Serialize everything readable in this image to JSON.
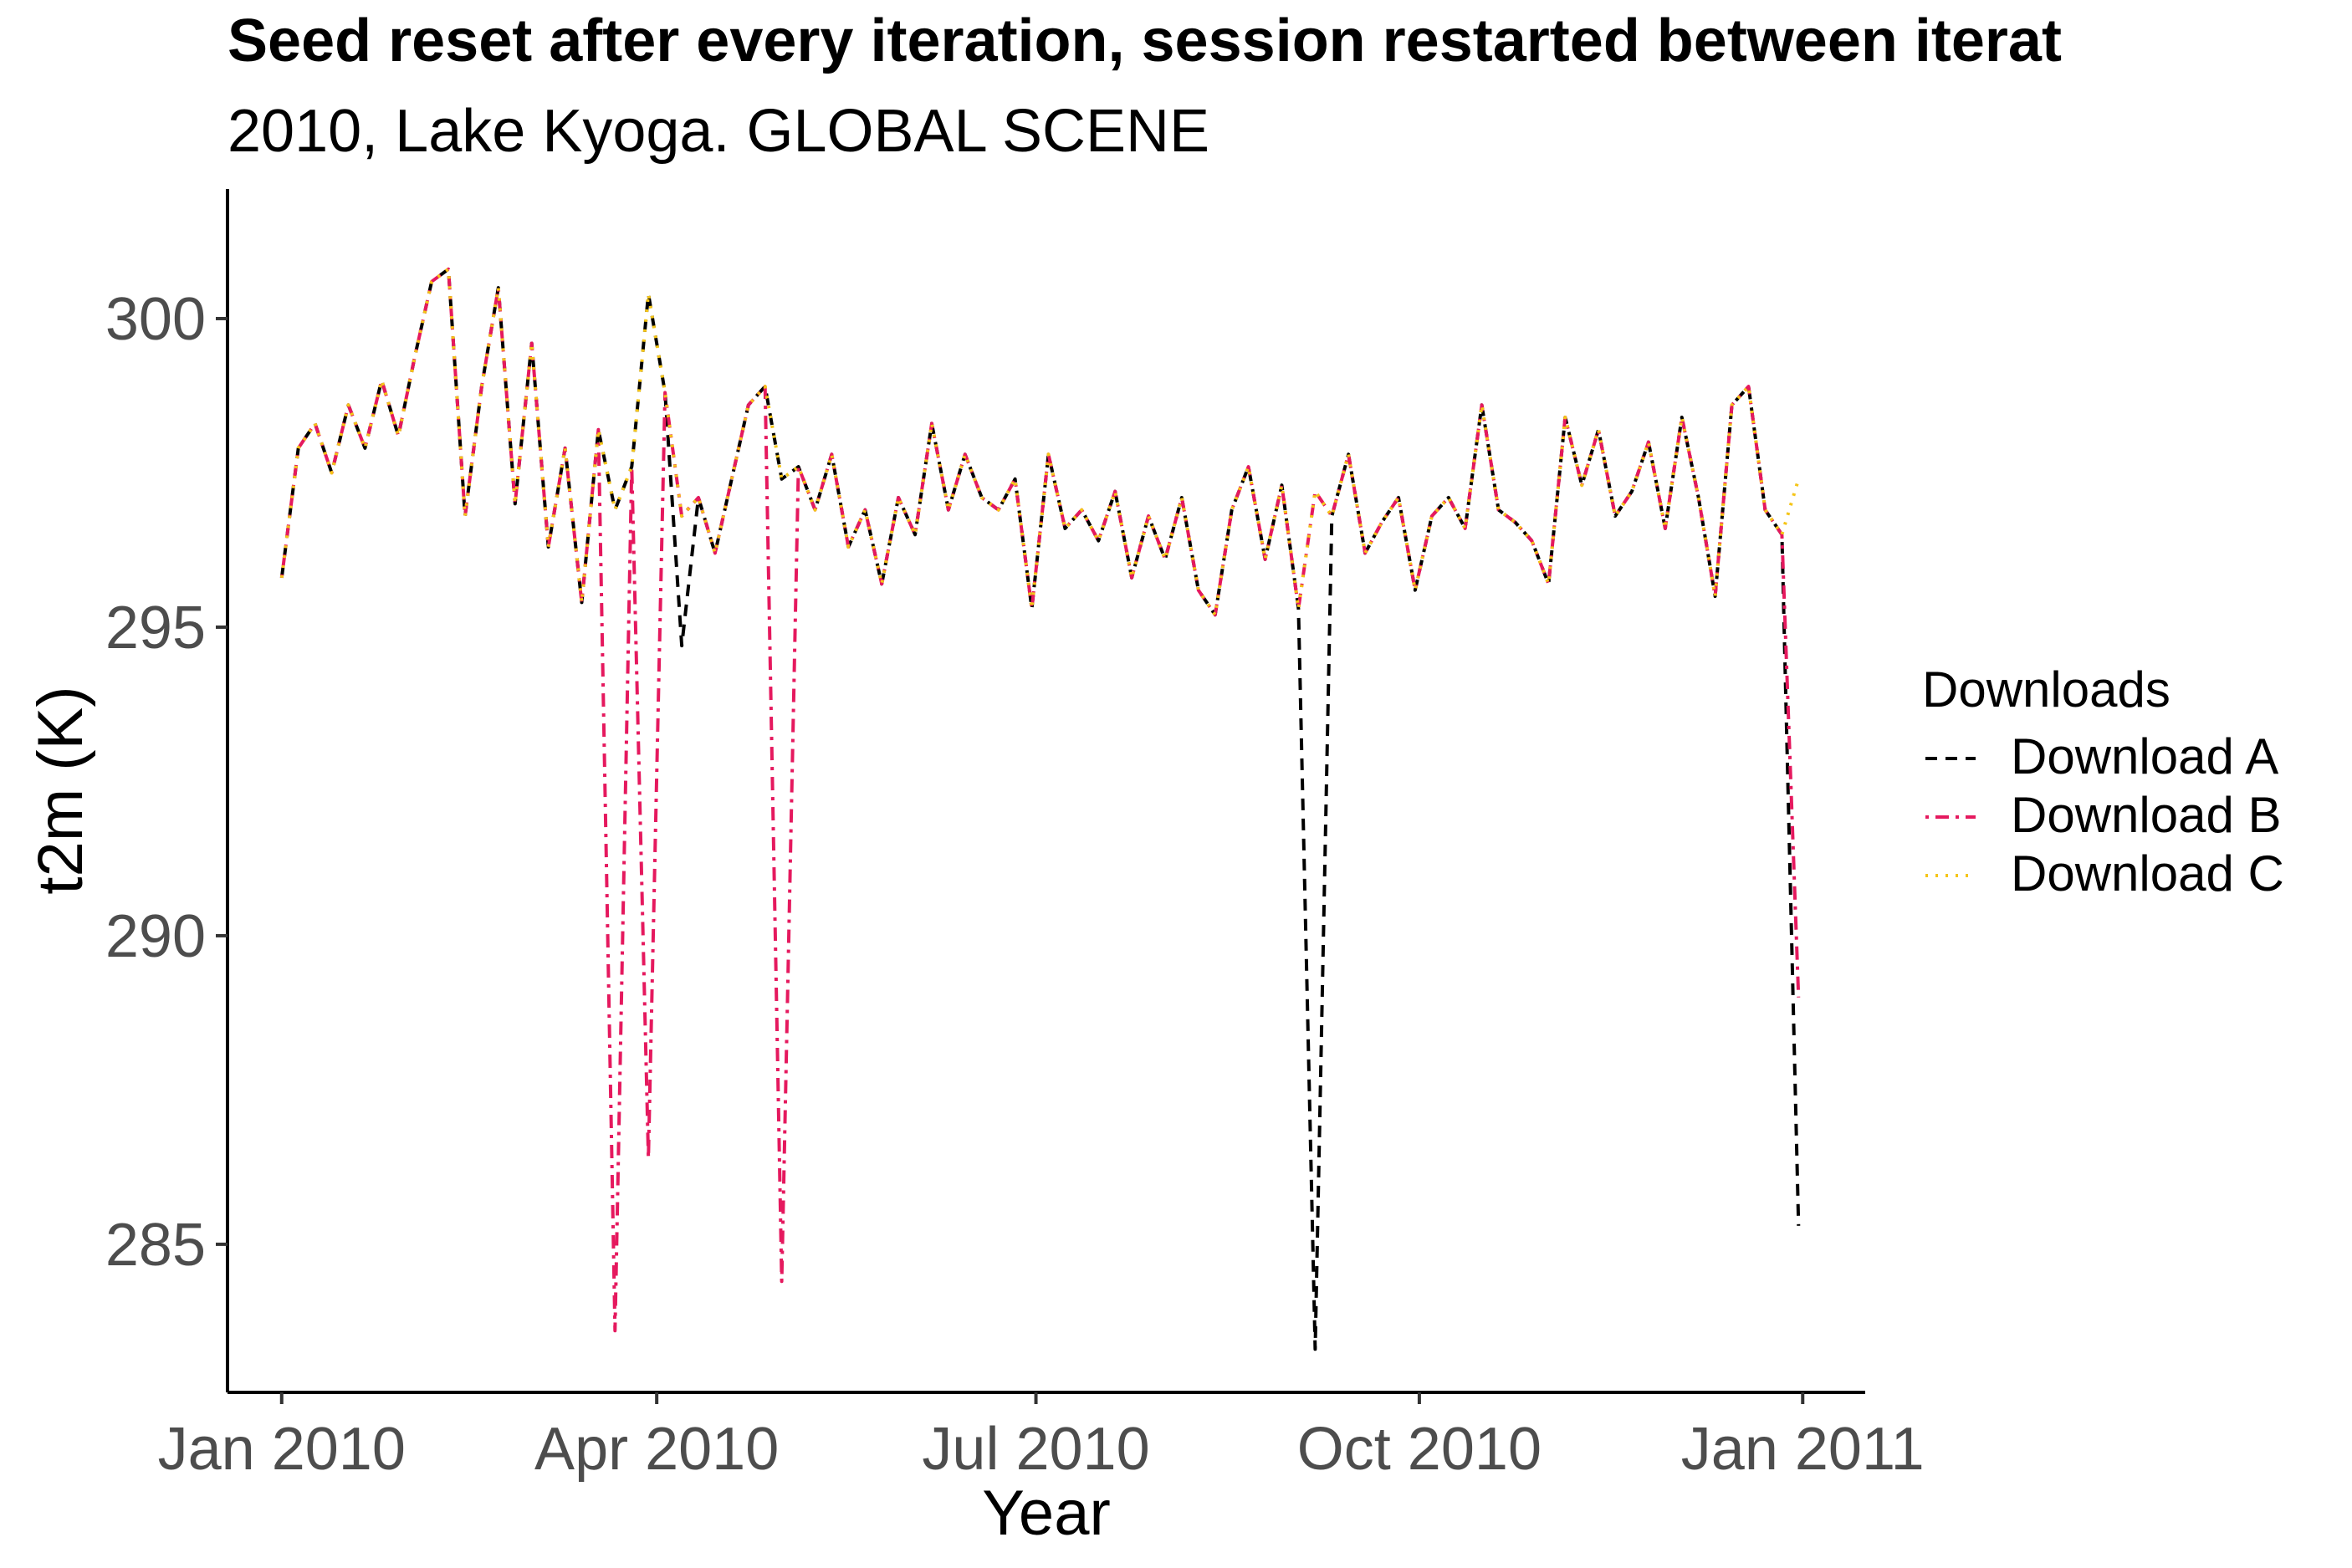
{
  "chart_data": {
    "type": "line",
    "title": "Seed reset after every iteration, session restarted between iterat",
    "subtitle": "2010, Lake Kyoga. GLOBAL SCENE",
    "xlabel": "Year",
    "ylabel": "t2m (K)",
    "x_ticks": [
      {
        "date": "2010-01-01",
        "label": "Jan 2010"
      },
      {
        "date": "2010-04-01",
        "label": "Apr 2010"
      },
      {
        "date": "2010-07-01",
        "label": "Jul 2010"
      },
      {
        "date": "2010-10-01",
        "label": "Oct 2010"
      },
      {
        "date": "2011-01-01",
        "label": "Jan 2011"
      }
    ],
    "y_ticks": [
      285,
      290,
      295,
      300
    ],
    "xlim": [
      "2009-12-19",
      "2011-01-16"
    ],
    "ylim": [
      282.6,
      302.1
    ],
    "grid": false,
    "legend": {
      "title": "Downloads",
      "position": "right"
    },
    "x": [
      "2010-01-01",
      "2010-01-05",
      "2010-01-09",
      "2010-01-13",
      "2010-01-17",
      "2010-01-21",
      "2010-01-25",
      "2010-01-29",
      "2010-02-02",
      "2010-02-06",
      "2010-02-10",
      "2010-02-14",
      "2010-02-18",
      "2010-02-22",
      "2010-02-26",
      "2010-03-02",
      "2010-03-06",
      "2010-03-10",
      "2010-03-14",
      "2010-03-18",
      "2010-03-22",
      "2010-03-26",
      "2010-03-30",
      "2010-04-03",
      "2010-04-07",
      "2010-04-11",
      "2010-04-15",
      "2010-04-19",
      "2010-04-23",
      "2010-04-27",
      "2010-05-01",
      "2010-05-05",
      "2010-05-09",
      "2010-05-13",
      "2010-05-17",
      "2010-05-21",
      "2010-05-25",
      "2010-05-29",
      "2010-06-02",
      "2010-06-06",
      "2010-06-10",
      "2010-06-14",
      "2010-06-18",
      "2010-06-22",
      "2010-06-26",
      "2010-06-30",
      "2010-07-04",
      "2010-07-08",
      "2010-07-12",
      "2010-07-16",
      "2010-07-20",
      "2010-07-24",
      "2010-07-28",
      "2010-08-01",
      "2010-08-05",
      "2010-08-09",
      "2010-08-13",
      "2010-08-17",
      "2010-08-21",
      "2010-08-25",
      "2010-08-29",
      "2010-09-02",
      "2010-09-06",
      "2010-09-10",
      "2010-09-14",
      "2010-09-18",
      "2010-09-22",
      "2010-09-26",
      "2010-09-30",
      "2010-10-04",
      "2010-10-08",
      "2010-10-12",
      "2010-10-16",
      "2010-10-20",
      "2010-10-24",
      "2010-10-28",
      "2010-11-01",
      "2010-11-05",
      "2010-11-09",
      "2010-11-13",
      "2010-11-17",
      "2010-11-21",
      "2010-11-25",
      "2010-11-29",
      "2010-12-03",
      "2010-12-07",
      "2010-12-11",
      "2010-12-15",
      "2010-12-19",
      "2010-12-23",
      "2010-12-27",
      "2010-12-31"
    ],
    "series": [
      {
        "name": "Download A",
        "color": "#000000",
        "dash": "dashed",
        "values": [
          295.8,
          297.9,
          298.3,
          297.5,
          298.6,
          297.9,
          299.0,
          298.1,
          299.4,
          300.6,
          300.8,
          296.8,
          298.9,
          300.5,
          297.0,
          299.6,
          296.3,
          297.9,
          295.4,
          298.2,
          296.9,
          297.6,
          300.4,
          298.8,
          294.7,
          297.1,
          296.2,
          297.4,
          298.6,
          298.9,
          297.4,
          297.6,
          296.9,
          297.8,
          296.3,
          296.9,
          295.7,
          297.1,
          296.5,
          298.3,
          296.9,
          297.8,
          297.1,
          296.9,
          297.4,
          295.3,
          297.8,
          296.6,
          296.9,
          296.4,
          297.2,
          295.8,
          296.8,
          296.1,
          297.1,
          295.6,
          295.2,
          296.9,
          297.6,
          296.1,
          297.3,
          295.3,
          283.3,
          296.8,
          297.8,
          296.2,
          296.7,
          297.1,
          295.6,
          296.8,
          297.1,
          296.6,
          298.6,
          296.9,
          296.7,
          296.4,
          295.7,
          298.4,
          297.3,
          298.2,
          296.8,
          297.2,
          298.0,
          296.6,
          298.4,
          297.1,
          295.5,
          298.6,
          298.9,
          296.9,
          296.5,
          285.3
        ]
      },
      {
        "name": "Download B",
        "color": "#e5195e",
        "dash": "dotdash",
        "values": [
          295.8,
          297.9,
          298.3,
          297.5,
          298.6,
          297.9,
          299.0,
          298.1,
          299.4,
          300.6,
          300.8,
          296.8,
          298.9,
          300.5,
          297.0,
          299.6,
          296.3,
          297.9,
          295.4,
          298.2,
          283.6,
          297.6,
          286.4,
          298.8,
          296.8,
          297.1,
          296.2,
          297.4,
          298.6,
          298.9,
          284.4,
          297.6,
          296.9,
          297.8,
          296.3,
          296.9,
          295.7,
          297.1,
          296.5,
          298.3,
          296.9,
          297.8,
          297.1,
          296.9,
          297.4,
          295.3,
          297.8,
          296.6,
          296.9,
          296.4,
          297.2,
          295.8,
          296.8,
          296.1,
          297.1,
          295.6,
          295.2,
          296.9,
          297.6,
          296.1,
          297.3,
          295.3,
          297.2,
          296.8,
          297.8,
          296.2,
          296.7,
          297.1,
          295.6,
          296.8,
          297.1,
          296.6,
          298.6,
          296.9,
          296.7,
          296.4,
          295.7,
          298.4,
          297.3,
          298.2,
          296.8,
          297.2,
          298.0,
          296.6,
          298.4,
          297.1,
          295.5,
          298.6,
          298.9,
          296.9,
          296.5,
          289.0
        ]
      },
      {
        "name": "Download C",
        "color": "#f5c518",
        "dash": "dotted",
        "values": [
          295.8,
          297.9,
          298.3,
          297.5,
          298.6,
          297.9,
          299.0,
          298.1,
          299.4,
          300.6,
          300.8,
          296.8,
          298.9,
          300.5,
          297.0,
          299.6,
          296.3,
          297.9,
          295.4,
          298.2,
          296.9,
          297.6,
          300.4,
          298.8,
          296.8,
          297.1,
          296.2,
          297.4,
          298.6,
          298.9,
          297.4,
          297.6,
          296.9,
          297.8,
          296.3,
          296.9,
          295.7,
          297.1,
          296.5,
          298.3,
          296.9,
          297.8,
          297.1,
          296.9,
          297.4,
          295.3,
          297.8,
          296.6,
          296.9,
          296.4,
          297.2,
          295.8,
          296.8,
          296.1,
          297.1,
          295.6,
          295.2,
          296.9,
          297.6,
          296.1,
          297.3,
          295.3,
          297.2,
          296.8,
          297.8,
          296.2,
          296.7,
          297.1,
          295.6,
          296.8,
          297.1,
          296.6,
          298.6,
          296.9,
          296.7,
          296.4,
          295.7,
          298.4,
          297.3,
          298.2,
          296.8,
          297.2,
          298.0,
          296.6,
          298.4,
          297.1,
          295.5,
          298.6,
          298.9,
          296.9,
          296.5,
          297.4
        ]
      }
    ]
  }
}
